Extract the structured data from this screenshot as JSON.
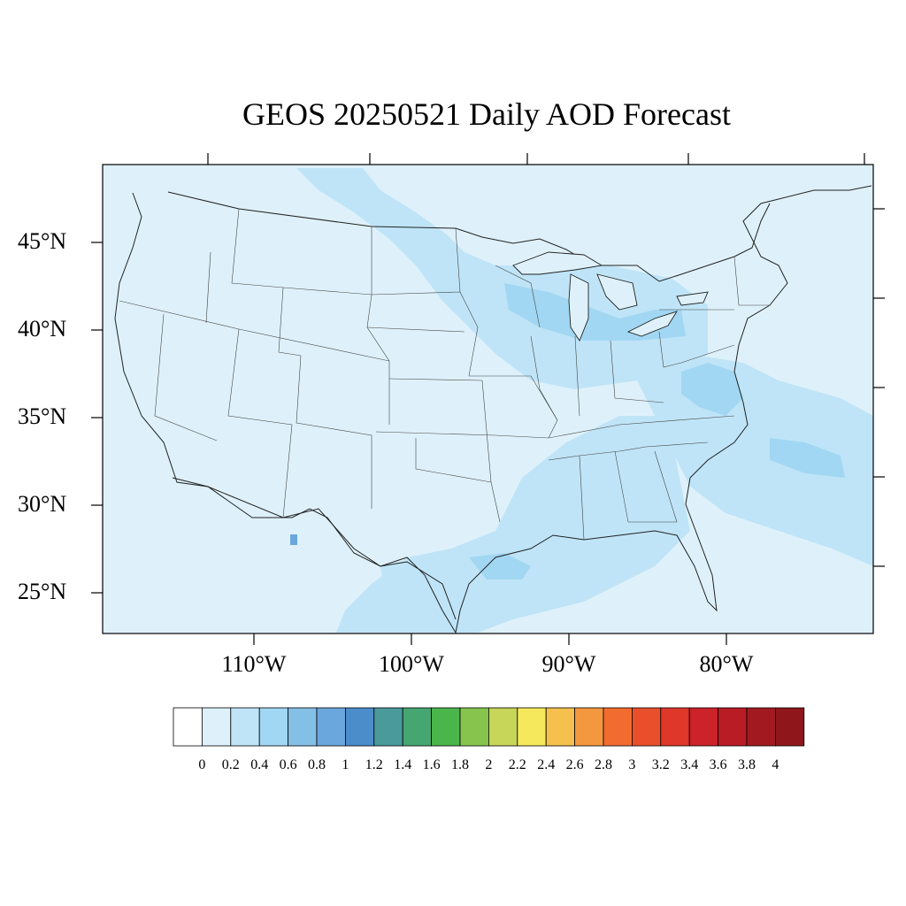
{
  "title": "GEOS 20250521 Daily AOD Forecast",
  "map": {
    "background_color": "#def1fa",
    "lat_labels": [
      "45°N",
      "40°N",
      "35°N",
      "30°N",
      "25°N"
    ],
    "lon_labels": [
      "110°W",
      "100°W",
      "90°W",
      "80°W"
    ]
  },
  "colorbar": {
    "labels": [
      "0",
      "0.2",
      "0.4",
      "0.6",
      "0.8",
      "1",
      "1.2",
      "1.4",
      "1.6",
      "1.8",
      "2",
      "2.2",
      "2.4",
      "2.6",
      "2.8",
      "3",
      "3.2",
      "3.4",
      "3.6",
      "3.8",
      "4"
    ],
    "colors": [
      "#ffffff",
      "#def1fa",
      "#bfe4f7",
      "#a1d7f2",
      "#84bfe6",
      "#6aa7dc",
      "#4b8dcb",
      "#4a9a9c",
      "#46a672",
      "#4ab54a",
      "#86c44e",
      "#c7d659",
      "#f5e85d",
      "#f5c04d",
      "#f4983f",
      "#f26c2f",
      "#ea4f2c",
      "#df372a",
      "#cc2229",
      "#b91c24",
      "#a21a20",
      "#8f171b"
    ]
  }
}
